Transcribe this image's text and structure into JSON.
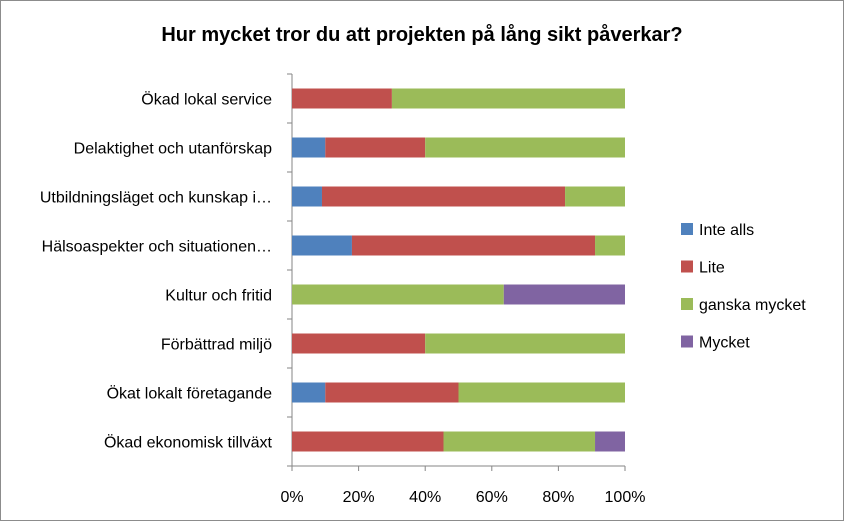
{
  "chart_data": {
    "type": "bar",
    "orientation": "horizontal",
    "stacked": "percent",
    "title": "Hur mycket tror du att projekten på lång sikt påverkar?",
    "xlabel": "",
    "ylabel": "",
    "xlim": [
      0,
      100
    ],
    "x_ticks": [
      "0%",
      "20%",
      "40%",
      "60%",
      "80%",
      "100%"
    ],
    "grid": false,
    "legend_position": "right",
    "categories": [
      "Ökad lokal service",
      "Delaktighet och utanförskap",
      "Utbildningsläget och kunskap i…",
      "Hälsoaspekter och situationen…",
      "Kultur och fritid",
      "Förbättrad miljö",
      "Ökat lokalt företagande",
      "Ökad ekonomisk tillväxt"
    ],
    "series": [
      {
        "name": "Inte alls",
        "color": "#4f81bd",
        "values": [
          0,
          10,
          9,
          18,
          0,
          0,
          10,
          0
        ]
      },
      {
        "name": "Lite",
        "color": "#c0504d",
        "values": [
          30,
          30,
          73,
          73,
          0,
          40,
          40,
          45.5
        ]
      },
      {
        "name": "ganska mycket",
        "color": "#9bbb59",
        "values": [
          70,
          60,
          18,
          9,
          63.6,
          60,
          50,
          45.5
        ]
      },
      {
        "name": "Mycket",
        "color": "#8064a2",
        "values": [
          0,
          0,
          0,
          0,
          36.4,
          0,
          0,
          9
        ]
      }
    ]
  }
}
